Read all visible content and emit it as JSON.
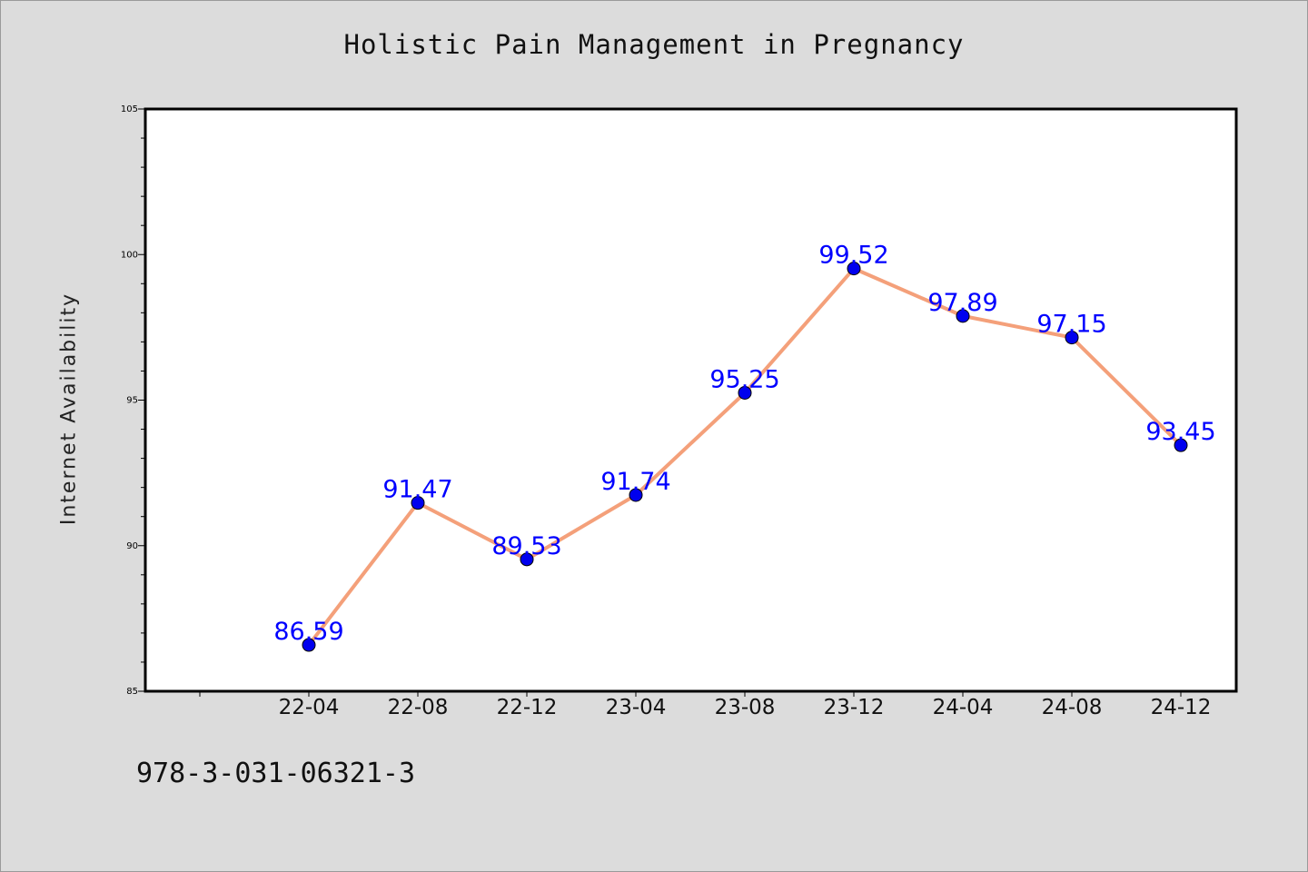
{
  "chart_data": {
    "type": "line",
    "title": "Holistic Pain Management in Pregnancy",
    "xlabel": "",
    "ylabel": "Internet Availability",
    "categories": [
      "22-04",
      "22-08",
      "22-12",
      "23-04",
      "23-08",
      "23-12",
      "24-04",
      "24-08",
      "24-12"
    ],
    "values": [
      86.59,
      91.47,
      89.53,
      91.74,
      95.25,
      99.52,
      97.89,
      97.15,
      93.45
    ],
    "value_labels": [
      "86.59",
      "91.47",
      "89.53",
      "91.74",
      "95.25",
      "99.52",
      "97.89",
      "97.15",
      "93.45"
    ],
    "ylim": [
      85,
      105
    ],
    "yticks": [
      "85",
      "90",
      "95",
      "100",
      "105"
    ],
    "grid": false,
    "line_color": "#f4a07a",
    "marker_color": "#0000ee",
    "label_color": "#0000ff"
  },
  "footer": {
    "isbn": "978-3-031-06321-3"
  }
}
